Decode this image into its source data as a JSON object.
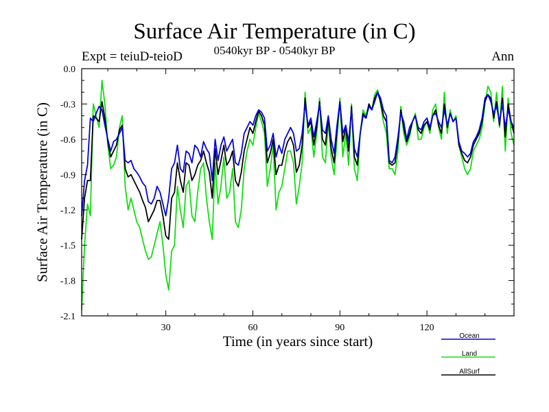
{
  "chart_data": {
    "type": "line",
    "title": "Surface Air Temperature (in C)",
    "subtitle": "0540kyr BP - 0540kyr BP",
    "expt_label": "Expt = teiuD-teioD",
    "period_label": "Ann",
    "xlabel": "Time (in years since start)",
    "ylabel": "Surface Air Temperature (in C)",
    "xlim": [
      1,
      150
    ],
    "ylim": [
      -2.1,
      0.0
    ],
    "x_ticks": [
      30,
      60,
      90,
      120
    ],
    "y_ticks": [
      0.0,
      -0.3,
      -0.6,
      -0.9,
      -1.2,
      -1.5,
      -1.8,
      -2.1
    ],
    "y_tick_labels": [
      "0.0",
      "-0.3",
      "-0.6",
      "-0.9",
      "-1.2",
      "-1.5",
      "-1.8",
      "-2.1"
    ],
    "series": [
      {
        "name": "Ocean",
        "color": "#0000dd",
        "values": [
          -1.25,
          -0.95,
          -0.82,
          -0.42,
          -0.45,
          -0.38,
          -0.32,
          -0.35,
          -0.48,
          -0.6,
          -0.7,
          -0.62,
          -0.6,
          -0.55,
          -0.5,
          -0.78,
          -0.8,
          -0.78,
          -0.85,
          -0.88,
          -0.92,
          -0.97,
          -1.0,
          -1.13,
          -1.15,
          -1.1,
          -1.0,
          -1.05,
          -1.15,
          -1.25,
          -1.1,
          -0.85,
          -0.8,
          -0.65,
          -0.85,
          -0.88,
          -0.7,
          -0.72,
          -0.8,
          -0.65,
          -0.68,
          -0.75,
          -0.62,
          -0.68,
          -0.72,
          -0.95,
          -0.6,
          -0.78,
          -0.65,
          -0.58,
          -0.7,
          -0.65,
          -0.6,
          -0.8,
          -0.82,
          -0.72,
          -0.55,
          -0.5,
          -0.45,
          -0.48,
          -0.4,
          -0.35,
          -0.37,
          -0.42,
          -0.7,
          -0.65,
          -0.55,
          -0.75,
          -0.65,
          -0.72,
          -0.6,
          -0.55,
          -0.5,
          -0.55,
          -0.7,
          -0.68,
          -0.55,
          -0.3,
          -0.48,
          -0.42,
          -0.58,
          -0.45,
          -0.3,
          -0.52,
          -0.55,
          -0.4,
          -0.6,
          -0.72,
          -0.48,
          -0.28,
          -0.55,
          -0.48,
          -0.62,
          -0.35,
          -0.68,
          -0.75,
          -0.55,
          -0.4,
          -0.42,
          -0.32,
          -0.35,
          -0.28,
          -0.2,
          -0.25,
          -0.35,
          -0.4,
          -0.78,
          -0.8,
          -0.75,
          -0.58,
          -0.38,
          -0.45,
          -0.6,
          -0.5,
          -0.45,
          -0.4,
          -0.5,
          -0.52,
          -0.45,
          -0.42,
          -0.5,
          -0.4,
          -0.38,
          -0.45,
          -0.5,
          -0.35,
          -0.48,
          -0.38,
          -0.45,
          -0.42,
          -0.62,
          -0.7,
          -0.72,
          -0.75,
          -0.72,
          -0.62,
          -0.58,
          -0.52,
          -0.42,
          -0.25,
          -0.22,
          -0.28,
          -0.38,
          -0.32,
          -0.45,
          -0.3,
          -0.5,
          -0.35,
          -0.45,
          -0.5
        ]
      },
      {
        "name": "Land",
        "color": "#11dd11",
        "values": [
          -2.05,
          -1.5,
          -1.15,
          -1.25,
          -0.3,
          -0.4,
          -0.5,
          -0.1,
          -0.3,
          -0.65,
          -0.85,
          -0.82,
          -0.75,
          -0.5,
          -0.4,
          -1.0,
          -1.2,
          -1.1,
          -1.2,
          -1.3,
          -1.35,
          -1.45,
          -1.55,
          -1.62,
          -1.6,
          -1.5,
          -1.4,
          -1.3,
          -1.5,
          -1.75,
          -1.88,
          -1.55,
          -1.5,
          -1.0,
          -1.2,
          -1.35,
          -1.0,
          -0.95,
          -1.25,
          -1.3,
          -1.05,
          -0.85,
          -0.8,
          -1.1,
          -1.3,
          -1.45,
          -0.8,
          -1.15,
          -1.0,
          -0.75,
          -1.1,
          -1.05,
          -0.85,
          -1.3,
          -1.35,
          -1.2,
          -0.85,
          -0.7,
          -0.6,
          -0.65,
          -0.5,
          -0.38,
          -0.45,
          -0.55,
          -1.0,
          -0.85,
          -0.65,
          -1.2,
          -1.05,
          -1.0,
          -0.85,
          -0.7,
          -0.7,
          -0.8,
          -1.15,
          -1.0,
          -0.8,
          -0.2,
          -0.55,
          -0.5,
          -0.75,
          -0.55,
          -0.25,
          -0.75,
          -0.8,
          -0.45,
          -0.75,
          -0.9,
          -0.6,
          -0.25,
          -0.75,
          -0.55,
          -0.82,
          -0.3,
          -0.85,
          -0.95,
          -0.55,
          -0.35,
          -0.4,
          -0.3,
          -0.35,
          -0.22,
          -0.18,
          -0.3,
          -0.45,
          -0.55,
          -0.85,
          -0.85,
          -0.9,
          -0.7,
          -0.32,
          -0.55,
          -0.65,
          -0.58,
          -0.45,
          -0.38,
          -0.6,
          -0.6,
          -0.5,
          -0.45,
          -0.55,
          -0.35,
          -0.3,
          -0.5,
          -0.6,
          -0.2,
          -0.55,
          -0.35,
          -0.45,
          -0.4,
          -0.65,
          -0.75,
          -0.85,
          -0.9,
          -0.85,
          -0.7,
          -0.65,
          -0.6,
          -0.5,
          -0.3,
          -0.15,
          -0.2,
          -0.45,
          -0.2,
          -0.5,
          -0.15,
          -0.7,
          -0.25,
          -0.55,
          -0.65
        ]
      },
      {
        "name": "AllSurf",
        "color": "#000000",
        "values": [
          -1.45,
          -1.1,
          -0.95,
          -0.95,
          -0.4,
          -0.42,
          -0.45,
          -0.28,
          -0.42,
          -0.62,
          -0.75,
          -0.7,
          -0.65,
          -0.52,
          -0.48,
          -0.85,
          -0.92,
          -0.9,
          -0.95,
          -1.0,
          -1.05,
          -1.12,
          -1.18,
          -1.3,
          -1.25,
          -1.2,
          -1.12,
          -1.12,
          -1.25,
          -1.42,
          -1.45,
          -1.1,
          -1.05,
          -0.8,
          -0.95,
          -1.05,
          -0.8,
          -0.82,
          -0.95,
          -0.9,
          -0.82,
          -0.78,
          -0.7,
          -0.8,
          -0.88,
          -1.1,
          -0.68,
          -0.9,
          -0.78,
          -0.65,
          -0.82,
          -0.78,
          -0.7,
          -0.95,
          -1.0,
          -0.88,
          -0.7,
          -0.6,
          -0.5,
          -0.55,
          -0.45,
          -0.36,
          -0.4,
          -0.48,
          -0.8,
          -0.72,
          -0.6,
          -0.9,
          -0.82,
          -0.82,
          -0.7,
          -0.62,
          -0.58,
          -0.65,
          -0.88,
          -0.82,
          -0.65,
          -0.25,
          -0.5,
          -0.45,
          -0.65,
          -0.5,
          -0.28,
          -0.6,
          -0.65,
          -0.42,
          -0.68,
          -0.8,
          -0.52,
          -0.28,
          -0.62,
          -0.5,
          -0.7,
          -0.32,
          -0.75,
          -0.82,
          -0.55,
          -0.38,
          -0.42,
          -0.3,
          -0.35,
          -0.25,
          -0.2,
          -0.28,
          -0.4,
          -0.45,
          -0.8,
          -0.82,
          -0.8,
          -0.62,
          -0.35,
          -0.5,
          -0.62,
          -0.55,
          -0.45,
          -0.4,
          -0.52,
          -0.55,
          -0.48,
          -0.45,
          -0.52,
          -0.4,
          -0.35,
          -0.48,
          -0.55,
          -0.3,
          -0.5,
          -0.38,
          -0.45,
          -0.42,
          -0.65,
          -0.72,
          -0.78,
          -0.8,
          -0.75,
          -0.65,
          -0.6,
          -0.55,
          -0.45,
          -0.28,
          -0.22,
          -0.25,
          -0.42,
          -0.28,
          -0.48,
          -0.25,
          -0.58,
          -0.3,
          -0.45,
          -0.55
        ]
      }
    ],
    "legend": [
      "Ocean",
      "Land",
      "AllSurf"
    ],
    "legend_position": "bottom-right",
    "grid": false
  }
}
